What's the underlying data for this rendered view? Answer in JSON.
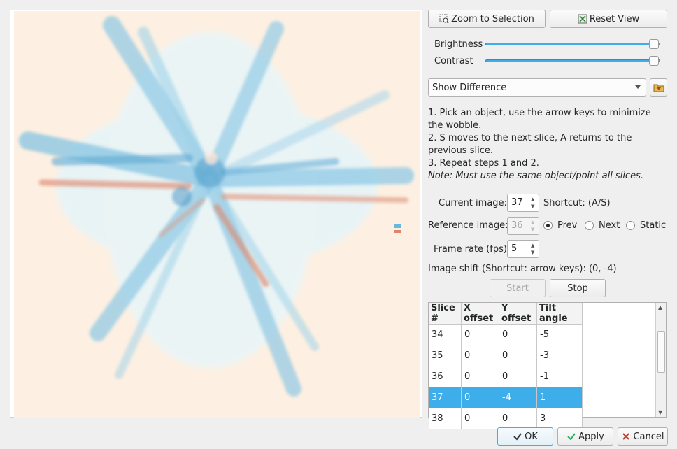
{
  "toolbar": {
    "zoom_label": "Zoom to Selection",
    "reset_label": "Reset View"
  },
  "sliders": {
    "brightness_label": "Brightness",
    "brightness_level": 0.99,
    "contrast_label": "Contrast",
    "contrast_level": 0.99
  },
  "mode": {
    "selected": "Show Difference"
  },
  "instructions": {
    "step1": "1. Pick an object, use the arrow keys to minimize the wobble.",
    "step2": "2. S moves to the next slice, A returns to the previous slice.",
    "step3": "3. Repeat steps 1 and 2.",
    "note": "Note: Must use the same object/point all slices."
  },
  "current_image": {
    "label": "Current image:",
    "value": "37",
    "shortcut": "Shortcut: (A/S)"
  },
  "reference_image": {
    "label": "Reference image:",
    "value": "36",
    "options": [
      "Prev",
      "Next",
      "Static"
    ],
    "selected": "Prev"
  },
  "frame_rate": {
    "label": "Frame rate (fps):",
    "value": "5"
  },
  "image_shift": {
    "text": "Image shift (Shortcut: arrow keys): (0, -4)"
  },
  "playback": {
    "start_label": "Start",
    "stop_label": "Stop"
  },
  "table": {
    "columns": [
      "Slice #",
      "X offset",
      "Y offset",
      "Tilt angle"
    ],
    "rows": [
      [
        "34",
        "0",
        "0",
        "-5"
      ],
      [
        "35",
        "0",
        "0",
        "-3"
      ],
      [
        "36",
        "0",
        "0",
        "-1"
      ],
      [
        "37",
        "0",
        "-4",
        "1"
      ],
      [
        "38",
        "0",
        "0",
        "3"
      ]
    ],
    "selected_row": "37"
  },
  "dialog": {
    "ok_label": "OK",
    "apply_label": "Apply",
    "cancel_label": "Cancel"
  },
  "colors": {
    "accent": "#3daee9",
    "image_background": "#fdf0e2",
    "positive": "#d36b4c",
    "negative": "#6ab7de"
  },
  "icons": {
    "zoom": "zoom-selection-icon",
    "reset": "reset-view-icon",
    "folder": "folder-open-icon",
    "ok": "ok-icon",
    "apply": "checkmark-icon",
    "cancel": "cancel-x-icon"
  }
}
